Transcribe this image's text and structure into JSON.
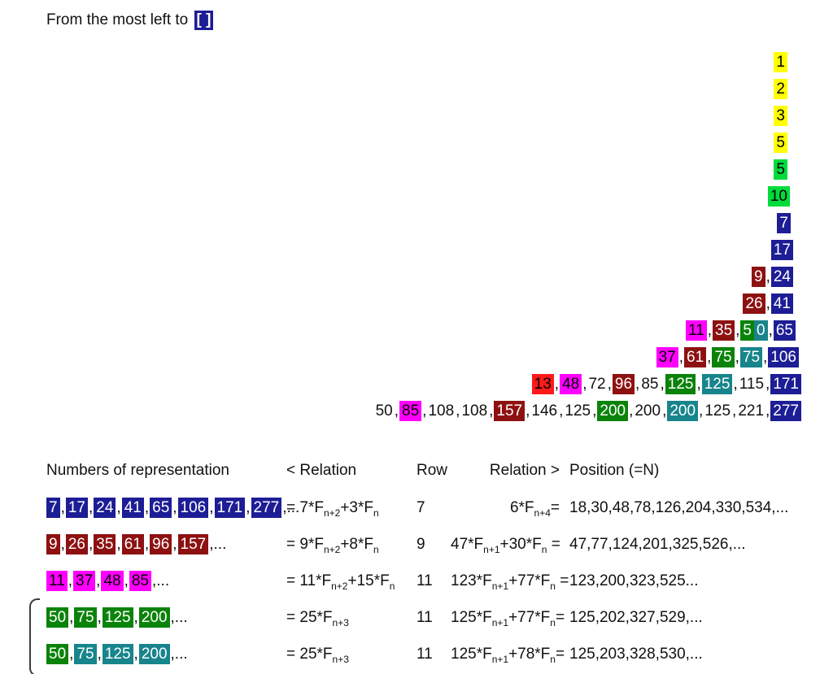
{
  "title": {
    "text": "From the most left to",
    "bracket": "[ ]"
  },
  "colors": {
    "yellow": {
      "bg": "#FFFF00",
      "fg": "#000000"
    },
    "brightgreen": {
      "bg": "#00DC3C",
      "fg": "#000000"
    },
    "green": {
      "bg": "#0B830B",
      "fg": "#FFFFFF"
    },
    "teal": {
      "bg": "#17858B",
      "fg": "#FFFFFF"
    },
    "navy": {
      "bg": "#1D1D96",
      "fg": "#FFFFFF"
    },
    "darkred": {
      "bg": "#8E1111",
      "fg": "#FFFFFF"
    },
    "magenta": {
      "bg": "#FF00FF",
      "fg": "#000000"
    },
    "red": {
      "bg": "#FF1A1A",
      "fg": "#000000"
    }
  },
  "triangle": {
    "rows": [
      [
        {
          "t": "1",
          "c": "yellow"
        }
      ],
      [
        {
          "t": "2",
          "c": "yellow"
        }
      ],
      [
        {
          "t": "3",
          "c": "yellow"
        }
      ],
      [
        {
          "t": "5",
          "c": "yellow"
        }
      ],
      [
        {
          "t": "5",
          "c": "brightgreen"
        }
      ],
      [
        {
          "t": "10",
          "c": "brightgreen"
        }
      ],
      [
        {
          "t": "7",
          "c": "navy"
        }
      ],
      [
        {
          "t": "17",
          "c": "navy"
        }
      ],
      [
        {
          "t": "9",
          "c": "darkred"
        },
        {
          "t": ","
        },
        {
          "t": "24",
          "c": "navy"
        }
      ],
      [
        {
          "t": "26",
          "c": "darkred"
        },
        {
          "t": ","
        },
        {
          "t": "41",
          "c": "navy"
        }
      ],
      [
        {
          "t": "11",
          "c": "magenta"
        },
        {
          "t": ","
        },
        {
          "t": "35",
          "c": "darkred"
        },
        {
          "t": ","
        },
        {
          "t": "5",
          "c": "green"
        },
        {
          "t": "0",
          "c": "teal"
        },
        {
          "t": ","
        },
        {
          "t": "65",
          "c": "navy"
        }
      ],
      [
        {
          "t": "37",
          "c": "magenta"
        },
        {
          "t": ","
        },
        {
          "t": "61",
          "c": "darkred"
        },
        {
          "t": ","
        },
        {
          "t": "75",
          "c": "green"
        },
        {
          "t": ","
        },
        {
          "t": "75",
          "c": "teal"
        },
        {
          "t": ","
        },
        {
          "t": "106",
          "c": "navy"
        }
      ],
      [
        {
          "t": "13",
          "c": "red"
        },
        {
          "t": ","
        },
        {
          "t": "48",
          "c": "magenta"
        },
        {
          "t": ","
        },
        {
          "t": "72"
        },
        {
          "t": ","
        },
        {
          "t": "96",
          "c": "darkred"
        },
        {
          "t": ","
        },
        {
          "t": "85"
        },
        {
          "t": ","
        },
        {
          "t": "125",
          "c": "green"
        },
        {
          "t": ","
        },
        {
          "t": "125",
          "c": "teal"
        },
        {
          "t": ","
        },
        {
          "t": "115"
        },
        {
          "t": ","
        },
        {
          "t": "171",
          "c": "navy"
        }
      ],
      [
        {
          "t": "50"
        },
        {
          "t": ","
        },
        {
          "t": "85",
          "c": "magenta"
        },
        {
          "t": ","
        },
        {
          "t": "108"
        },
        {
          "t": ","
        },
        {
          "t": "108"
        },
        {
          "t": ","
        },
        {
          "t": "157",
          "c": "darkred"
        },
        {
          "t": ","
        },
        {
          "t": "146"
        },
        {
          "t": ","
        },
        {
          "t": "125"
        },
        {
          "t": ","
        },
        {
          "t": "200",
          "c": "green"
        },
        {
          "t": ","
        },
        {
          "t": "200"
        },
        {
          "t": ","
        },
        {
          "t": "200",
          "c": "teal"
        },
        {
          "t": ","
        },
        {
          "t": "125"
        },
        {
          "t": ","
        },
        {
          "t": "221"
        },
        {
          "t": ","
        },
        {
          "t": "277",
          "c": "navy"
        }
      ]
    ]
  },
  "table": {
    "headers": {
      "numbers": "Numbers of representation",
      "relation_left": "< Relation",
      "row": "Row",
      "relation_right": "Relation >",
      "position": "Position (=N)"
    },
    "rows": [
      {
        "numbers": [
          {
            "t": "7",
            "c": "navy"
          },
          {
            "t": ","
          },
          {
            "t": "17",
            "c": "navy"
          },
          {
            "t": ","
          },
          {
            "t": "24",
            "c": "navy"
          },
          {
            "t": ","
          },
          {
            "t": "41",
            "c": "navy"
          },
          {
            "t": ","
          },
          {
            "t": "65",
            "c": "navy"
          },
          {
            "t": ","
          },
          {
            "t": "106",
            "c": "navy"
          },
          {
            "t": ","
          },
          {
            "t": "171",
            "c": "navy"
          },
          {
            "t": ","
          },
          {
            "t": "277",
            "c": "navy"
          },
          {
            "t": ",..."
          }
        ],
        "relation_left": [
          {
            "t": "= 7*F"
          },
          {
            "s": "n+2"
          },
          {
            "t": "+3*F"
          },
          {
            "s": "n"
          }
        ],
        "row": "7",
        "relation_right": [
          {
            "t": "6*F"
          },
          {
            "s": "n+4"
          },
          {
            "t": "="
          }
        ],
        "position": "18,30,48,78,126,204,330,534,..."
      },
      {
        "numbers": [
          {
            "t": "9",
            "c": "darkred"
          },
          {
            "t": ","
          },
          {
            "t": "26",
            "c": "darkred"
          },
          {
            "t": ","
          },
          {
            "t": "35",
            "c": "darkred"
          },
          {
            "t": ","
          },
          {
            "t": "61",
            "c": "darkred"
          },
          {
            "t": ","
          },
          {
            "t": "96",
            "c": "darkred"
          },
          {
            "t": ","
          },
          {
            "t": "157",
            "c": "darkred"
          },
          {
            "t": ",..."
          }
        ],
        "relation_left": [
          {
            "t": "= 9*F"
          },
          {
            "s": "n+2"
          },
          {
            "t": "+8*F"
          },
          {
            "s": "n"
          }
        ],
        "row": "9",
        "relation_right": [
          {
            "t": "47*F"
          },
          {
            "s": "n+1"
          },
          {
            "t": "+30*F"
          },
          {
            "s": "n"
          },
          {
            "t": " ="
          }
        ],
        "position": "47,77,124,201,325,526,..."
      },
      {
        "numbers": [
          {
            "t": "11",
            "c": "magenta"
          },
          {
            "t": ","
          },
          {
            "t": "37",
            "c": "magenta"
          },
          {
            "t": ","
          },
          {
            "t": "48",
            "c": "magenta"
          },
          {
            "t": ","
          },
          {
            "t": "85",
            "c": "magenta"
          },
          {
            "t": ",..."
          }
        ],
        "relation_left": [
          {
            "t": "= 11*F"
          },
          {
            "s": "n+2"
          },
          {
            "t": "+15*F"
          },
          {
            "s": "n"
          }
        ],
        "row": "11",
        "relation_right": [
          {
            "t": "123*F"
          },
          {
            "s": "n+1"
          },
          {
            "t": "+77*F"
          },
          {
            "s": "n"
          },
          {
            "t": " ="
          }
        ],
        "position": "123,200,323,525..."
      },
      {
        "numbers": [
          {
            "t": "50",
            "c": "green"
          },
          {
            "t": ","
          },
          {
            "t": "75",
            "c": "green"
          },
          {
            "t": ","
          },
          {
            "t": "125",
            "c": "green"
          },
          {
            "t": ","
          },
          {
            "t": "200",
            "c": "green"
          },
          {
            "t": ",..."
          }
        ],
        "relation_left": [
          {
            "t": "= 25*F"
          },
          {
            "s": "n+3"
          }
        ],
        "row": "11",
        "relation_right": [
          {
            "t": "125*F"
          },
          {
            "s": "n+1"
          },
          {
            "t": "+77*F"
          },
          {
            "s": "n"
          },
          {
            "t": "="
          }
        ],
        "position": "125,202,327,529,..."
      },
      {
        "numbers": [
          {
            "t": "50",
            "c": "green"
          },
          {
            "t": ","
          },
          {
            "t": "75",
            "c": "teal"
          },
          {
            "t": ","
          },
          {
            "t": "125",
            "c": "teal"
          },
          {
            "t": ","
          },
          {
            "t": "200",
            "c": "teal"
          },
          {
            "t": ",..."
          }
        ],
        "relation_left": [
          {
            "t": "= 25*F"
          },
          {
            "s": "n+3"
          }
        ],
        "row": "11",
        "relation_right": [
          {
            "t": "125*F"
          },
          {
            "s": "n+1"
          },
          {
            "t": "+78*F"
          },
          {
            "s": "n"
          },
          {
            "t": "="
          }
        ],
        "position": "125,203,328,530,..."
      }
    ]
  }
}
